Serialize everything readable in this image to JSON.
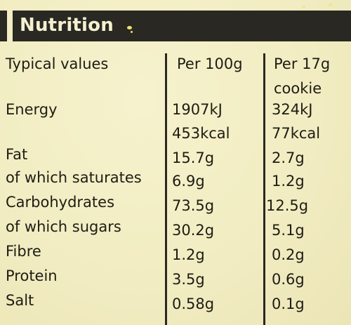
{
  "title": "Nutrition",
  "columns": {
    "label": "Typical values",
    "per100": "Per 100g",
    "per_cookie_line1": "Per 17g",
    "per_cookie_line2": "cookie"
  },
  "rows": [
    {
      "label": "Energy",
      "per100": "1907kJ",
      "per_cookie": "324kJ"
    },
    {
      "label": "",
      "per100": "453kcal",
      "per_cookie": "77kcal"
    },
    {
      "label": "Fat",
      "per100": "15.7g",
      "per_cookie": "2.7g"
    },
    {
      "label": "of which saturates",
      "per100": "6.9g",
      "per_cookie": "1.2g"
    },
    {
      "label": "Carbohydrates",
      "per100": "73.5g",
      "per_cookie": "12.5g"
    },
    {
      "label": "of which sugars",
      "per100": "30.2g",
      "per_cookie": "5.1g"
    },
    {
      "label": "Fibre",
      "per100": "1.2g",
      "per_cookie": "0.2g"
    },
    {
      "label": "Protein",
      "per100": "3.5g",
      "per_cookie": "0.6g"
    },
    {
      "label": "Salt",
      "per100": "0.58g",
      "per_cookie": "0.1g"
    }
  ]
}
